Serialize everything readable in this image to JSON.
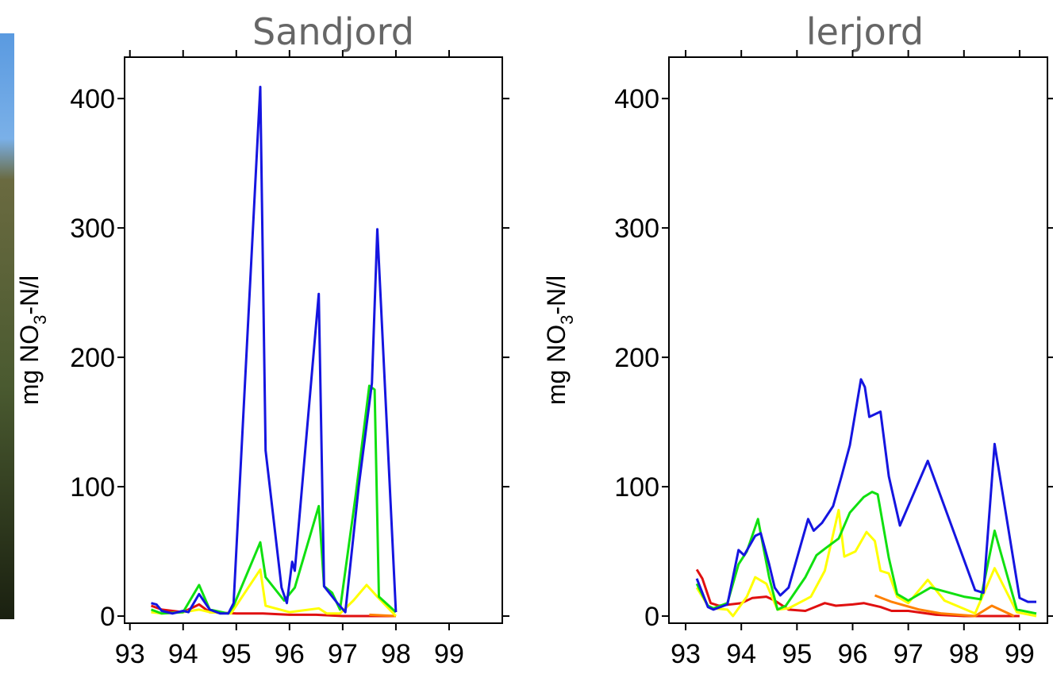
{
  "chart_data": [
    {
      "type": "line",
      "title": "Sandjord",
      "ylabel": {
        "main": "mg NO",
        "sub": "3",
        "rest": "-N/l"
      },
      "xlim": [
        92.9,
        100
      ],
      "xticks": [
        93,
        94,
        95,
        96,
        97,
        98,
        99
      ],
      "ylim": [
        -5.5,
        432
      ],
      "yticks": [
        0,
        100,
        200,
        300,
        400
      ],
      "series": [
        {
          "color": "#e01010",
          "x": [
            93.4,
            93.6,
            94.0,
            94.3,
            94.5,
            95.0,
            95.5,
            96.0,
            96.5,
            97.0,
            97.5,
            98.0
          ],
          "values": [
            8,
            5,
            3,
            9,
            3,
            2,
            2,
            1,
            1,
            0,
            0,
            0
          ]
        },
        {
          "color": "#ff8000",
          "x": [
            97.5,
            98.0
          ],
          "values": [
            1,
            0
          ]
        },
        {
          "color": "#ffff00",
          "x": [
            93.4,
            93.6,
            94.0,
            94.3,
            94.5,
            94.9,
            95.45,
            95.55,
            96.0,
            96.55,
            96.7,
            96.95,
            97.2,
            97.45,
            97.65,
            98.0
          ],
          "values": [
            3,
            2,
            3,
            5,
            3,
            2,
            36,
            8,
            3,
            6,
            2,
            2,
            12,
            24,
            15,
            0
          ]
        },
        {
          "color": "#10e010",
          "x": [
            93.4,
            93.6,
            94.0,
            94.3,
            94.5,
            94.85,
            94.95,
            95.45,
            95.55,
            95.9,
            96.1,
            96.55,
            96.65,
            96.8,
            96.95,
            97.25,
            97.5,
            97.6,
            97.68,
            98.0
          ],
          "values": [
            5,
            2,
            3,
            24,
            5,
            2,
            8,
            57,
            30,
            12,
            22,
            85,
            23,
            18,
            5,
            95,
            178,
            175,
            15,
            3
          ]
        },
        {
          "color": "#1515e0",
          "x": [
            93.4,
            93.5,
            93.6,
            93.8,
            94.0,
            94.1,
            94.3,
            94.5,
            94.7,
            94.85,
            94.95,
            95.45,
            95.55,
            95.85,
            95.95,
            96.05,
            96.1,
            96.55,
            96.65,
            96.9,
            97.05,
            97.3,
            97.55,
            97.65,
            98.0
          ],
          "values": [
            10,
            9,
            4,
            2,
            4,
            3,
            17,
            5,
            2,
            2,
            10,
            409,
            128,
            22,
            10,
            42,
            35,
            249,
            23,
            10,
            3,
            100,
            180,
            299,
            3
          ]
        }
      ]
    },
    {
      "type": "line",
      "title": "lerjord",
      "ylabel": {
        "main": "mg NO",
        "sub": "3",
        "rest": "-N/l"
      },
      "xlim": [
        92.7,
        99.5
      ],
      "xticks": [
        93,
        94,
        95,
        96,
        97,
        98,
        99
      ],
      "ylim": [
        -5.5,
        432
      ],
      "yticks": [
        0,
        100,
        200,
        300,
        400
      ],
      "series": [
        {
          "color": "#e01010",
          "x": [
            93.2,
            93.3,
            93.45,
            93.6,
            94.0,
            94.2,
            94.45,
            94.6,
            94.85,
            95.15,
            95.5,
            95.7,
            96.0,
            96.2,
            96.5,
            96.7,
            97.0,
            97.5,
            98.0,
            98.5,
            99.0
          ],
          "values": [
            36,
            29,
            10,
            8,
            10,
            14,
            15,
            12,
            5,
            4,
            10,
            8,
            9,
            10,
            7,
            4,
            4,
            1,
            0,
            0,
            0
          ]
        },
        {
          "color": "#ff8000",
          "x": [
            96.4,
            96.7,
            97.2,
            97.6,
            98.2,
            98.5,
            98.9
          ],
          "values": [
            16,
            11,
            5,
            2,
            0,
            8,
            0
          ]
        },
        {
          "color": "#ffff00",
          "x": [
            93.2,
            93.4,
            93.5,
            93.75,
            93.85,
            94.1,
            94.25,
            94.45,
            94.65,
            94.85,
            95.25,
            95.5,
            95.75,
            95.85,
            96.05,
            96.25,
            96.4,
            96.5,
            96.65,
            96.8,
            97.0,
            97.35,
            97.65,
            98.2,
            98.55,
            98.95,
            99.3
          ],
          "values": [
            22,
            8,
            6,
            5,
            0,
            15,
            30,
            25,
            5,
            6,
            15,
            35,
            82,
            46,
            50,
            65,
            58,
            35,
            33,
            15,
            10,
            28,
            12,
            2,
            37,
            3,
            0
          ]
        },
        {
          "color": "#10e010",
          "x": [
            93.2,
            93.4,
            93.5,
            93.75,
            93.95,
            94.1,
            94.3,
            94.5,
            94.65,
            94.8,
            95.15,
            95.35,
            95.5,
            95.75,
            95.95,
            96.2,
            96.35,
            96.45,
            96.65,
            96.8,
            97.0,
            97.4,
            98.0,
            98.3,
            98.55,
            98.95,
            99.3
          ],
          "values": [
            25,
            8,
            6,
            10,
            40,
            50,
            75,
            30,
            5,
            8,
            30,
            47,
            52,
            60,
            80,
            92,
            96,
            94,
            45,
            17,
            12,
            22,
            15,
            13,
            66,
            5,
            2
          ]
        },
        {
          "color": "#1515e0",
          "x": [
            93.2,
            93.4,
            93.5,
            93.75,
            93.95,
            94.05,
            94.25,
            94.35,
            94.5,
            94.6,
            94.7,
            94.85,
            95.2,
            95.3,
            95.45,
            95.65,
            95.8,
            95.95,
            96.15,
            96.22,
            96.3,
            96.5,
            96.65,
            96.85,
            97.35,
            98.2,
            98.35,
            98.55,
            99.0,
            99.15,
            99.3
          ],
          "values": [
            29,
            7,
            5,
            9,
            51,
            47,
            62,
            64,
            40,
            22,
            16,
            22,
            75,
            66,
            72,
            85,
            108,
            132,
            183,
            177,
            154,
            158,
            108,
            70,
            120,
            20,
            18,
            133,
            14,
            11,
            11
          ]
        }
      ]
    }
  ]
}
